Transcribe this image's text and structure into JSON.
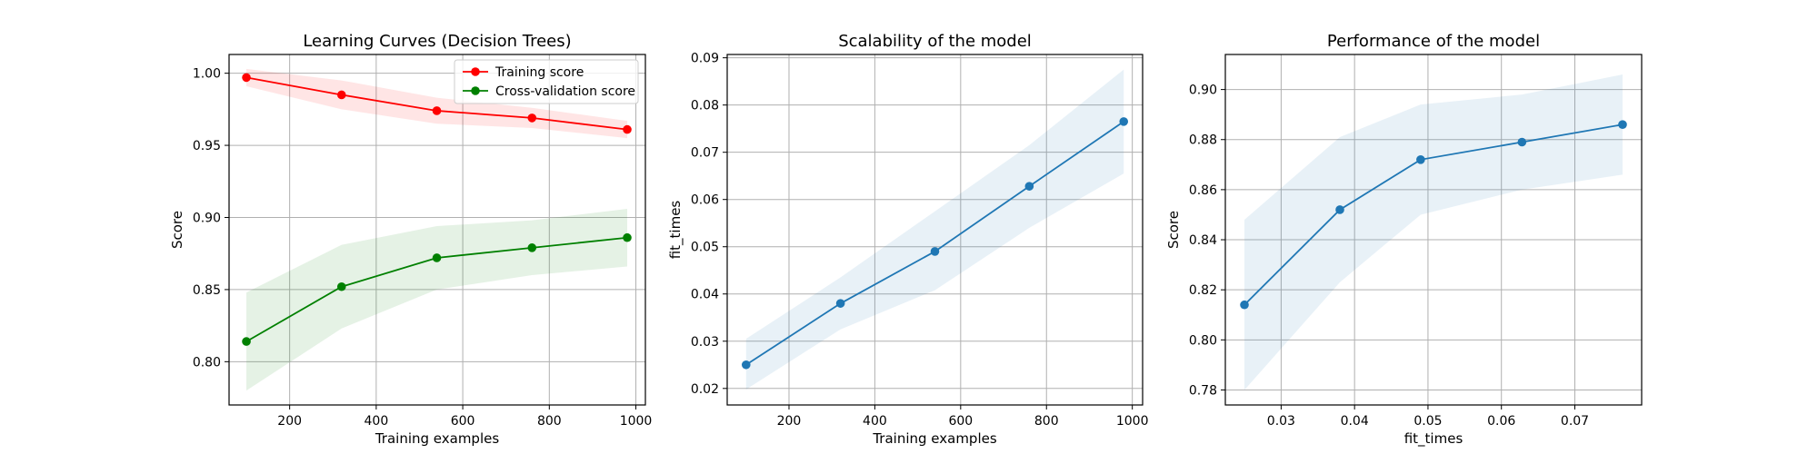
{
  "chart_data": [
    {
      "type": "line",
      "title": "Learning Curves (Decision Trees)",
      "xlabel": "Training examples",
      "ylabel": "Score",
      "xlim": [
        60,
        1022
      ],
      "ylim": [
        0.77,
        1.013
      ],
      "xticks": [
        200,
        400,
        600,
        800,
        1000
      ],
      "yticks": [
        0.8,
        0.85,
        0.9,
        0.95,
        1.0
      ],
      "ytick_labels": [
        "0.80",
        "0.85",
        "0.90",
        "0.95",
        "1.00"
      ],
      "grid": true,
      "legend": "top-right",
      "x": [
        100,
        320,
        540,
        760,
        980
      ],
      "series": [
        {
          "name": "Training score",
          "color": "#ff0000",
          "values": [
            0.997,
            0.985,
            0.974,
            0.969,
            0.961
          ],
          "band_low": [
            0.991,
            0.975,
            0.965,
            0.962,
            0.955
          ],
          "band_high": [
            1.003,
            0.995,
            0.983,
            0.976,
            0.967
          ]
        },
        {
          "name": "Cross-validation score",
          "color": "#008000",
          "values": [
            0.814,
            0.852,
            0.872,
            0.879,
            0.886
          ],
          "band_low": [
            0.78,
            0.823,
            0.85,
            0.86,
            0.866
          ],
          "band_high": [
            0.848,
            0.881,
            0.894,
            0.898,
            0.906
          ]
        }
      ]
    },
    {
      "type": "line",
      "title": "Scalability of the model",
      "xlabel": "Training examples",
      "ylabel": "fit_times",
      "xlim": [
        56,
        1024
      ],
      "ylim": [
        0.0165,
        0.0907
      ],
      "xticks": [
        200,
        400,
        600,
        800,
        1000
      ],
      "yticks": [
        0.02,
        0.03,
        0.04,
        0.05,
        0.06,
        0.07,
        0.08,
        0.09
      ],
      "ytick_labels": [
        "0.02",
        "0.03",
        "0.04",
        "0.05",
        "0.06",
        "0.07",
        "0.08",
        "0.09"
      ],
      "grid": true,
      "x": [
        100,
        320,
        540,
        760,
        980
      ],
      "series": [
        {
          "color": "#1f77b4",
          "values": [
            0.025,
            0.038,
            0.049,
            0.0628,
            0.0765
          ],
          "band_low": [
            0.0198,
            0.0325,
            0.0408,
            0.054,
            0.0655
          ],
          "band_high": [
            0.0305,
            0.0435,
            0.0575,
            0.0715,
            0.0875
          ]
        }
      ]
    },
    {
      "type": "line",
      "title": "Performance of the model",
      "xlabel": "fit_times",
      "ylabel": "Score",
      "xlim": [
        0.0224,
        0.0791
      ],
      "ylim": [
        0.774,
        0.914
      ],
      "xticks": [
        0.03,
        0.04,
        0.05,
        0.06,
        0.07
      ],
      "xtick_labels": [
        "0.03",
        "0.04",
        "0.05",
        "0.06",
        "0.07"
      ],
      "yticks": [
        0.78,
        0.8,
        0.82,
        0.84,
        0.86,
        0.88,
        0.9
      ],
      "ytick_labels": [
        "0.78",
        "0.80",
        "0.82",
        "0.84",
        "0.86",
        "0.88",
        "0.90"
      ],
      "grid": true,
      "x": [
        0.025,
        0.038,
        0.049,
        0.0628,
        0.0765
      ],
      "series": [
        {
          "color": "#1f77b4",
          "values": [
            0.814,
            0.852,
            0.872,
            0.879,
            0.886
          ],
          "band_low": [
            0.78,
            0.823,
            0.85,
            0.86,
            0.866
          ],
          "band_high": [
            0.848,
            0.881,
            0.894,
            0.898,
            0.906
          ]
        }
      ]
    }
  ]
}
